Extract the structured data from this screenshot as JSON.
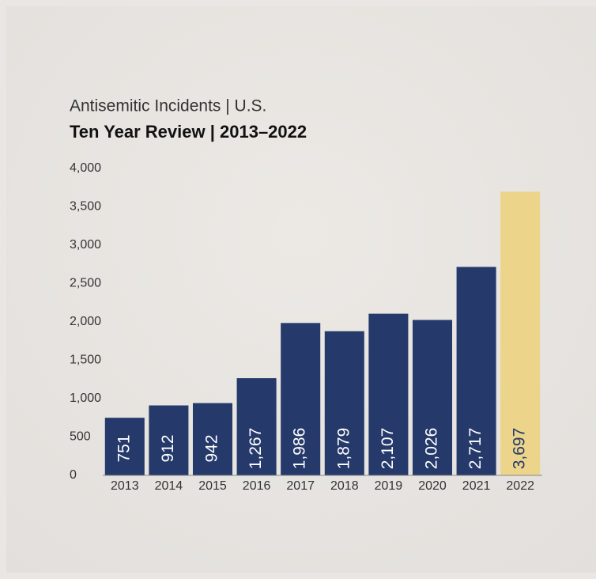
{
  "chart_data": {
    "type": "bar",
    "title": "Antisemitic Incidents | U.S.",
    "subtitle": "Ten Year Review | 2013–2022",
    "categories": [
      "2013",
      "2014",
      "2015",
      "2016",
      "2017",
      "2018",
      "2019",
      "2020",
      "2021",
      "2022"
    ],
    "values": [
      751,
      912,
      942,
      1267,
      1986,
      1879,
      2107,
      2026,
      2717,
      3697
    ],
    "value_labels": [
      "751",
      "912",
      "942",
      "1,267",
      "1,986",
      "1,879",
      "2,107",
      "2,026",
      "2,717",
      "3,697"
    ],
    "colors": [
      "#253a6b",
      "#253a6b",
      "#253a6b",
      "#253a6b",
      "#253a6b",
      "#253a6b",
      "#253a6b",
      "#253a6b",
      "#253a6b",
      "#ecd48a"
    ],
    "ylim": [
      0,
      4000
    ],
    "yticks": [
      0,
      500,
      {
        "value": 1000,
        "label": "1,000"
      },
      {
        "value": 1500,
        "label": "1,500"
      },
      {
        "value": 2000,
        "label": "2,000"
      },
      {
        "value": 2500,
        "label": "2,500"
      },
      {
        "value": 3000,
        "label": "3,000"
      },
      {
        "value": 3500,
        "label": "3,500"
      },
      {
        "value": 4000,
        "label": "4,000"
      }
    ],
    "grid": false
  }
}
